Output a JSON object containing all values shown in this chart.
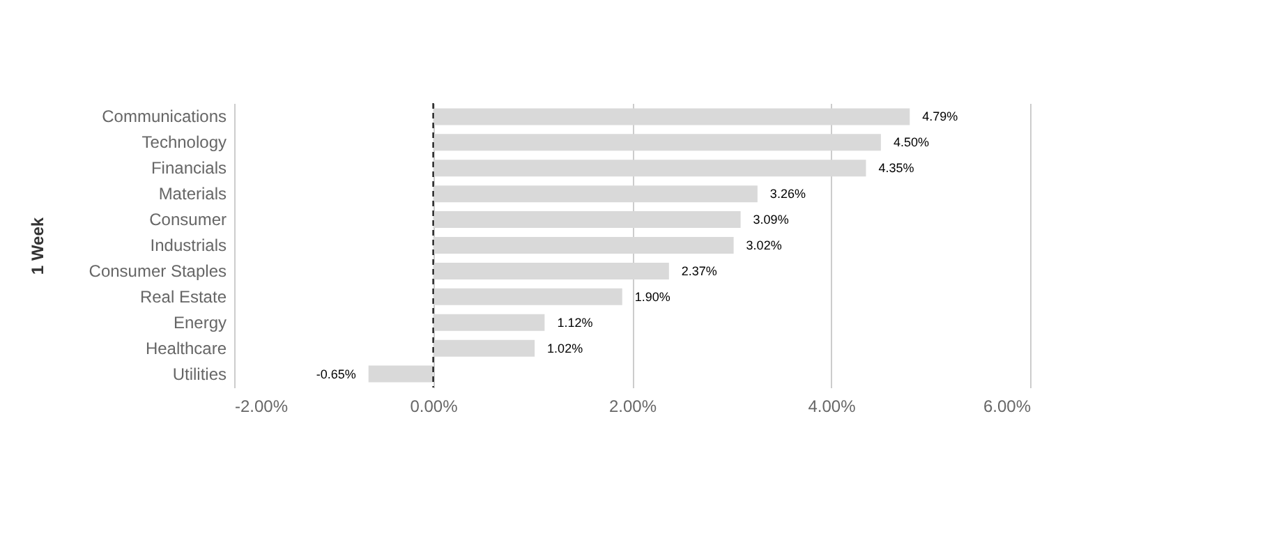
{
  "chart_data": {
    "type": "bar",
    "orientation": "horizontal",
    "ylabel": "1 Week",
    "categories": [
      "Communications",
      "Technology",
      "Financials",
      "Materials",
      "Consumer",
      "Industrials",
      "Consumer Staples",
      "Real Estate",
      "Energy",
      "Healthcare",
      "Utilities"
    ],
    "values": [
      4.79,
      4.5,
      4.35,
      3.26,
      3.09,
      3.02,
      2.37,
      1.9,
      1.12,
      1.02,
      -0.65
    ],
    "value_labels": [
      "4.79%",
      "4.50%",
      "4.35%",
      "3.26%",
      "3.09%",
      "3.02%",
      "2.37%",
      "1.90%",
      "1.12%",
      "1.02%",
      "-0.65%"
    ],
    "color": "#d9d9d9",
    "xlim": [
      -2,
      6
    ],
    "xticks": [
      {
        "value": -2,
        "label": "-2.00%"
      },
      {
        "value": 0,
        "label": "0.00%"
      },
      {
        "value": 2,
        "label": "2.00%"
      },
      {
        "value": 4,
        "label": "4.00%"
      },
      {
        "value": 6,
        "label": "6.00%"
      }
    ],
    "grid": "x",
    "ref_lines": [
      {
        "axis": "x",
        "value": 0,
        "color": "#000000",
        "line_style": "dashed"
      }
    ]
  }
}
